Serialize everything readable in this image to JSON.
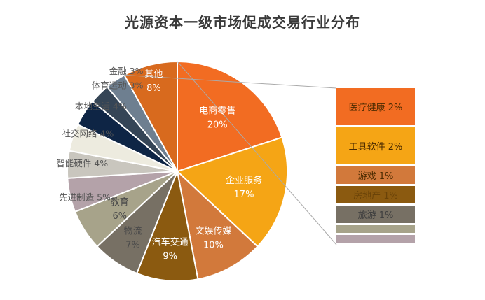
{
  "chart_data": {
    "type": "pie",
    "title": "光源资本一级市场促成交易行业分布",
    "series": [
      {
        "label": "电商零售",
        "value": 20,
        "percent_label": "20%",
        "color": "#F26C22"
      },
      {
        "label": "企业服务",
        "value": 17,
        "percent_label": "17%",
        "color": "#F5A515"
      },
      {
        "label": "文娱传媒",
        "value": 10,
        "percent_label": "10%",
        "color": "#D2793B"
      },
      {
        "label": "汽车交通",
        "value": 9,
        "percent_label": "9%",
        "color": "#8B5A10"
      },
      {
        "label": "物流",
        "value": 7,
        "percent_label": "7%",
        "color": "#777064"
      },
      {
        "label": "教育",
        "value": 6,
        "percent_label": "6%",
        "color": "#A7A38A"
      },
      {
        "label": "先进制造",
        "value": 5,
        "percent_label": "5%",
        "color": "#B4A2A9"
      },
      {
        "label": "智能硬件",
        "value": 4,
        "percent_label": "4%",
        "color": "#C9C6BE"
      },
      {
        "label": "社交网络",
        "value": 4,
        "percent_label": "4%",
        "color": "#EDEBDF"
      },
      {
        "label": "本地生活",
        "value": 4,
        "percent_label": "4%",
        "color": "#0E2545"
      },
      {
        "label": "体育运动",
        "value": 3,
        "percent_label": "3%",
        "color": "#354556"
      },
      {
        "label": "金融",
        "value": 3,
        "percent_label": "3%",
        "color": "#6E7F90"
      },
      {
        "label": "其他",
        "value": 8,
        "percent_label": "8%",
        "color": "#D86A1E"
      }
    ],
    "breakdown": {
      "of": "其他",
      "items": [
        {
          "label": "医疗健康",
          "value": 2,
          "percent_label": "2%",
          "color": "#F26C22"
        },
        {
          "label": "工具软件",
          "value": 2,
          "percent_label": "2%",
          "color": "#F5A515"
        },
        {
          "label": "游戏",
          "value": 1,
          "percent_label": "1%",
          "color": "#D2793B"
        },
        {
          "label": "房地产",
          "value": 1,
          "percent_label": "1%",
          "color": "#8B5A10"
        },
        {
          "label": "旅游",
          "value": 1,
          "percent_label": "1%",
          "color": "#777064"
        },
        {
          "label": "",
          "value": 0.5,
          "percent_label": "",
          "color": "#A7A38A"
        },
        {
          "label": "",
          "value": 0.5,
          "percent_label": "",
          "color": "#B4A2A9"
        }
      ]
    }
  }
}
